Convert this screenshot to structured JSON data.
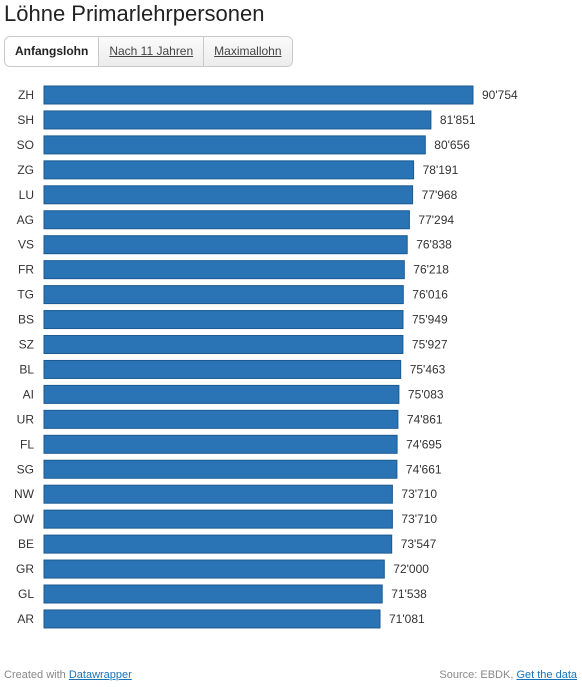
{
  "page": {
    "title": "Löhne Primarlehrpersonen"
  },
  "tabs": [
    {
      "label": "Anfangslohn",
      "active": true
    },
    {
      "label": "Nach 11 Jahren",
      "active": false
    },
    {
      "label": "Maximallohn",
      "active": false
    }
  ],
  "footer": {
    "created_prefix": "Created with",
    "created_link": "Datawrapper",
    "source_prefix": "Source: EBDK,",
    "source_link": "Get the data"
  },
  "colors": {
    "bar": "#2a74b5",
    "bar_border": "#1c5a90"
  },
  "chart_data": {
    "type": "bar",
    "orientation": "horizontal",
    "categories": [
      "ZH",
      "SH",
      "SO",
      "ZG",
      "LU",
      "AG",
      "VS",
      "FR",
      "TG",
      "BS",
      "SZ",
      "BL",
      "AI",
      "UR",
      "FL",
      "SG",
      "NW",
      "OW",
      "BE",
      "GR",
      "GL",
      "AR"
    ],
    "values": [
      90754,
      81851,
      80656,
      78191,
      77968,
      77294,
      76838,
      76218,
      76016,
      75949,
      75927,
      75463,
      75083,
      74861,
      74695,
      74661,
      73710,
      73710,
      73547,
      72000,
      71538,
      71081
    ],
    "value_labels": [
      "90'754",
      "81'851",
      "80'656",
      "78'191",
      "77'968",
      "77'294",
      "76'838",
      "76'218",
      "76'016",
      "75'949",
      "75'927",
      "75'463",
      "75'083",
      "74'861",
      "74'695",
      "74'661",
      "73'710",
      "73'710",
      "73'547",
      "72'000",
      "71'538",
      "71'081"
    ],
    "xlim": [
      0,
      90754
    ],
    "grid": false,
    "legend": "none"
  }
}
